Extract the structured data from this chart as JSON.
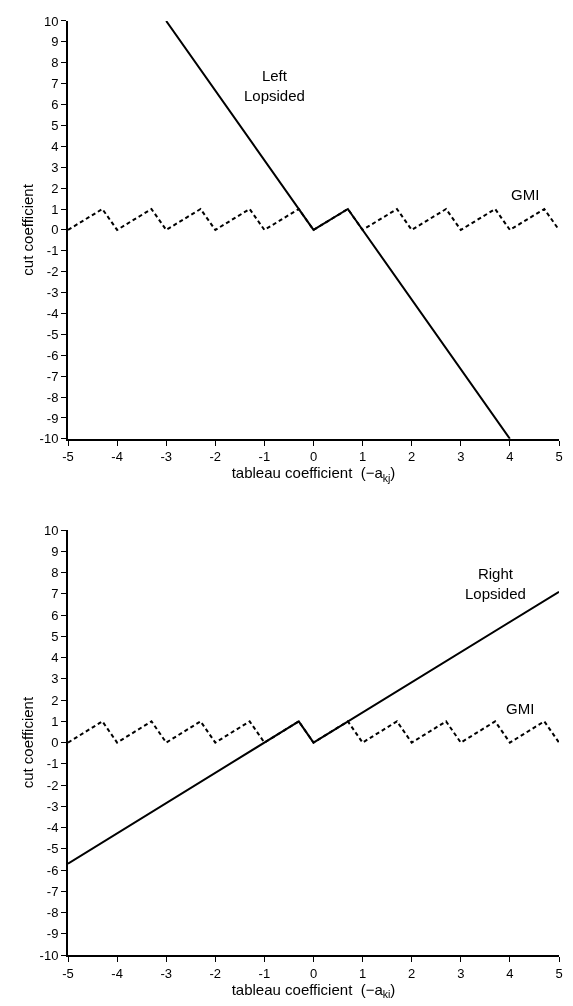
{
  "chart_data": [
    {
      "type": "line",
      "xlabel": "tableau coefficient  (−a$_{kj}$)",
      "ylabel": "cut coefficient",
      "xlim": [
        -5,
        5
      ],
      "xticks": [
        -5,
        -4,
        -3,
        -2,
        -1,
        0,
        1,
        2,
        3,
        4,
        5
      ],
      "ylim": [
        -10,
        10
      ],
      "yticks": [
        -10,
        -9,
        -8,
        -7,
        -6,
        -5,
        -4,
        -3,
        -2,
        -1,
        0,
        1,
        2,
        3,
        4,
        5,
        6,
        7,
        8,
        9,
        10
      ],
      "legend": false,
      "marker": "none",
      "series": [
        {
          "name": "GMI",
          "color": "#000000",
          "line_style": "dashed",
          "x": [
            -5,
            -4.3,
            -4,
            -3.3,
            -3,
            -2.3,
            -2,
            -1.3,
            -1,
            -0.3,
            0,
            0.7,
            1,
            1.7,
            2,
            2.7,
            3,
            3.7,
            4,
            4.7,
            5
          ],
          "values": [
            0,
            1,
            0,
            1,
            0,
            1,
            0,
            1,
            0,
            1,
            0,
            1,
            0,
            1,
            0,
            1,
            0,
            1,
            0,
            1,
            0
          ]
        },
        {
          "name": "Left\nLopsided",
          "color": "#000000",
          "line_style": "solid",
          "x": [
            -3,
            0,
            0.7,
            4
          ],
          "values": [
            10,
            0,
            1,
            -10
          ]
        }
      ]
    },
    {
      "type": "line",
      "xlabel": "tableau coefficient  (−a$_{ki}$)",
      "ylabel": "cut coefficient",
      "xlim": [
        -5,
        5
      ],
      "xticks": [
        -5,
        -4,
        -3,
        -2,
        -1,
        0,
        1,
        2,
        3,
        4,
        5
      ],
      "ylim": [
        -10,
        10
      ],
      "yticks": [
        -10,
        -9,
        -8,
        -7,
        -6,
        -5,
        -4,
        -3,
        -2,
        -1,
        0,
        1,
        2,
        3,
        4,
        5,
        6,
        7,
        8,
        9,
        10
      ],
      "legend": false,
      "marker": "none",
      "series": [
        {
          "name": "GMI",
          "color": "#000000",
          "line_style": "dashed",
          "x": [
            -5,
            -4.3,
            -4,
            -3.3,
            -3,
            -2.3,
            -2,
            -1.3,
            -1,
            -0.3,
            0,
            0.7,
            1,
            1.7,
            2,
            2.7,
            3,
            3.7,
            4,
            4.7,
            5
          ],
          "values": [
            0,
            1,
            0,
            1,
            0,
            1,
            0,
            1,
            0,
            1,
            0,
            1,
            0,
            1,
            0,
            1,
            0,
            1,
            0,
            1,
            0
          ]
        },
        {
          "name": "Right\nLopsided",
          "color": "#000000",
          "line_style": "solid",
          "x": [
            -5,
            -0.3,
            0,
            5
          ],
          "values": [
            -5.7,
            1,
            0,
            7.1
          ]
        }
      ]
    }
  ]
}
